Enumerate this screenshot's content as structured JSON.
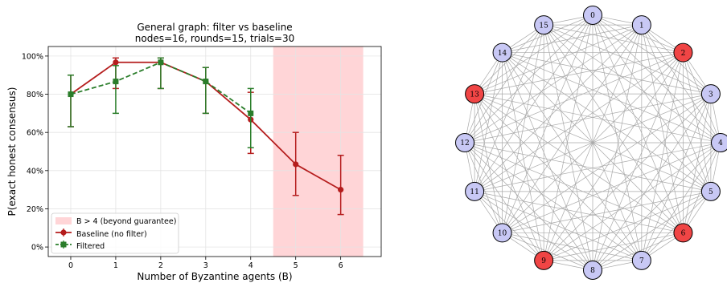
{
  "chart_data": [
    {
      "type": "line",
      "title": "General graph: filter vs baseline",
      "subtitle": "nodes=16, rounds=15, trials=30",
      "xlabel": "Number of Byzantine agents (B)",
      "ylabel": "P(exact honest consensus)",
      "x_ticks": [
        "0",
        "1",
        "2",
        "3",
        "4",
        "5",
        "6"
      ],
      "y_ticks": [
        "0%",
        "20%",
        "40%",
        "60%",
        "80%",
        "100%"
      ],
      "xlim": [
        -0.5,
        6.9
      ],
      "ylim": [
        -0.05,
        1.05
      ],
      "grid": true,
      "legend_position": "lower-left",
      "shaded_region": {
        "label": "B > 4 (beyond guarantee)",
        "x_range": [
          4.5,
          6.5
        ],
        "color": "#ffd5d7"
      },
      "series": [
        {
          "name": "Baseline (no filter)",
          "color": "#b51d1d",
          "style": "solid",
          "marker": "circle",
          "x": [
            0,
            1,
            2,
            3,
            4,
            5,
            6
          ],
          "y": [
            0.8,
            0.967,
            0.967,
            0.867,
            0.667,
            0.433,
            0.3
          ],
          "err_low": [
            0.63,
            0.83,
            0.83,
            0.7,
            0.49,
            0.27,
            0.17
          ],
          "err_high": [
            0.9,
            0.99,
            0.99,
            0.94,
            0.81,
            0.6,
            0.48
          ]
        },
        {
          "name": "Filtered",
          "color": "#2a7d2a",
          "style": "dashed",
          "marker": "square",
          "x": [
            0,
            1,
            2,
            3,
            4
          ],
          "y": [
            0.8,
            0.867,
            0.967,
            0.867,
            0.7
          ],
          "err_low": [
            0.63,
            0.7,
            0.83,
            0.7,
            0.52
          ],
          "err_high": [
            0.9,
            0.95,
            0.99,
            0.94,
            0.83
          ]
        }
      ]
    },
    {
      "type": "graph",
      "node_labels": [
        "0",
        "1",
        "2",
        "3",
        "4",
        "5",
        "6",
        "7",
        "8",
        "9",
        "10",
        "11",
        "12",
        "13",
        "14",
        "15"
      ],
      "byzantine_nodes": [
        2,
        6,
        9,
        13
      ],
      "honest_color": "#c8c8f5",
      "byzantine_color": "#f04545",
      "edge_color": "#a9a9a9",
      "connectivity": "complete"
    }
  ]
}
